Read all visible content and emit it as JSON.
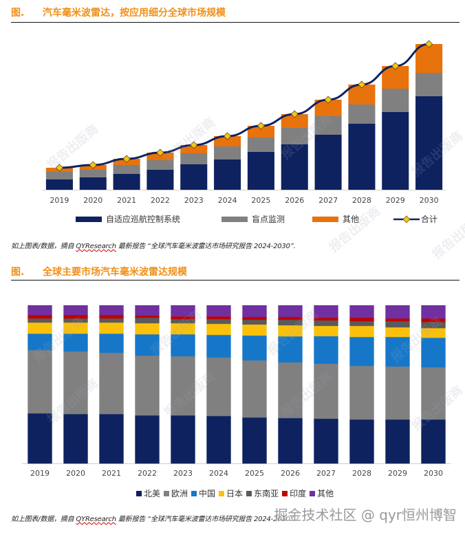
{
  "figure1": {
    "number": "图.",
    "title": "汽车毫米波雷达，按应用细分全球市场规模",
    "caption_prefix": "如上图表/数据，摘自 ",
    "caption_brand": "QYResearch",
    "caption_suffix": " 最新报告 “全球汽车毫米波雷达市场研究报告 2024-2030”.",
    "legend": [
      {
        "label": "自适应巡航控制系统",
        "color": "#0e2260",
        "type": "bar"
      },
      {
        "label": "盲点监测",
        "color": "#808080",
        "type": "bar"
      },
      {
        "label": "其他",
        "color": "#e8720c",
        "type": "bar"
      },
      {
        "label": "合计",
        "color": "#0e2260",
        "marker_color": "#f5c518",
        "type": "line"
      }
    ]
  },
  "figure2": {
    "number": "图.",
    "title": "全球主要市场汽车毫米波雷达规模",
    "caption_prefix": "如上图表/数据，摘自 ",
    "caption_brand": "QYResearch",
    "caption_suffix": " 最新报告 “全球汽车毫米波雷达市场研究报告 2024-2030”.",
    "legend": [
      {
        "label": "北美",
        "color": "#0e2260"
      },
      {
        "label": "欧洲",
        "color": "#808080"
      },
      {
        "label": "中国",
        "color": "#1677c8"
      },
      {
        "label": "日本",
        "color": "#fbc10a"
      },
      {
        "label": "东南亚",
        "color": "#5a5a5a"
      },
      {
        "label": "印度",
        "color": "#c00000"
      },
      {
        "label": "其他",
        "color": "#7030a0"
      }
    ]
  },
  "watermark_text": "报告出版商",
  "footer_watermark": "掘金技术社区 @ qyr恒州博智",
  "chart_data": [
    {
      "type": "bar",
      "stacked": true,
      "title": "汽车毫米波雷达，按应用细分全球市场规模",
      "xlabel": "",
      "ylabel": "",
      "y_axis_labels_shown": false,
      "units": "relative (no axis scale shown)",
      "categories": [
        "2019",
        "2020",
        "2021",
        "2022",
        "2023",
        "2024",
        "2025",
        "2026",
        "2027",
        "2028",
        "2029",
        "2030"
      ],
      "series": [
        {
          "name": "自适应巡航控制系统",
          "values": [
            15,
            18,
            23,
            29,
            37,
            44,
            55,
            66,
            80,
            96,
            113,
            136
          ]
        },
        {
          "name": "盲点监测",
          "values": [
            11,
            11,
            13,
            14,
            16,
            19,
            21,
            24,
            27,
            28,
            34,
            34
          ]
        },
        {
          "name": "其他",
          "values": [
            6,
            7,
            9,
            11,
            12,
            15,
            17,
            20,
            24,
            29,
            33,
            42
          ]
        }
      ],
      "line_series": {
        "name": "合计",
        "values": [
          32,
          36,
          45,
          54,
          65,
          78,
          93,
          110,
          131,
          153,
          180,
          212
        ]
      },
      "ylim": [
        0,
        220
      ],
      "grid": false,
      "legend_position": "bottom"
    },
    {
      "type": "bar",
      "stacked": true,
      "percent": true,
      "title": "全球主要市场汽车毫米波雷达规模",
      "xlabel": "",
      "ylabel": "",
      "categories": [
        "2019",
        "2020",
        "2021",
        "2022",
        "2023",
        "2024",
        "2025",
        "2026",
        "2027",
        "2028",
        "2029",
        "2030"
      ],
      "series": [
        {
          "name": "北美",
          "values": [
            31.7,
            31.3,
            31.3,
            30.4,
            30.4,
            30.0,
            29.1,
            28.7,
            28.3,
            27.8,
            27.8,
            27.8
          ]
        },
        {
          "name": "欧洲",
          "values": [
            40.0,
            39.6,
            38.7,
            37.8,
            37.4,
            37.0,
            36.1,
            35.2,
            34.8,
            33.9,
            33.5,
            33.0
          ]
        },
        {
          "name": "中国",
          "values": [
            10.4,
            11.3,
            12.2,
            13.5,
            13.9,
            14.3,
            15.7,
            16.5,
            17.4,
            18.3,
            18.7,
            18.7
          ]
        },
        {
          "name": "日本",
          "values": [
            7.0,
            7.0,
            7.0,
            7.0,
            7.0,
            7.0,
            7.0,
            7.0,
            6.5,
            7.0,
            6.1,
            6.1
          ]
        },
        {
          "name": "东南亚",
          "values": [
            2.6,
            2.6,
            2.6,
            3.5,
            2.6,
            3.0,
            3.0,
            3.5,
            3.5,
            3.0,
            3.9,
            3.9
          ]
        },
        {
          "name": "印度",
          "values": [
            2.2,
            2.2,
            2.2,
            1.3,
            1.7,
            1.7,
            1.7,
            1.7,
            1.7,
            2.2,
            1.7,
            2.2
          ]
        },
        {
          "name": "其他",
          "values": [
            6.1,
            6.1,
            6.1,
            6.5,
            7.0,
            7.0,
            7.4,
            7.4,
            7.8,
            7.8,
            8.3,
            8.3
          ]
        }
      ],
      "ylim": [
        0,
        100
      ],
      "grid": false,
      "legend_position": "bottom"
    }
  ]
}
